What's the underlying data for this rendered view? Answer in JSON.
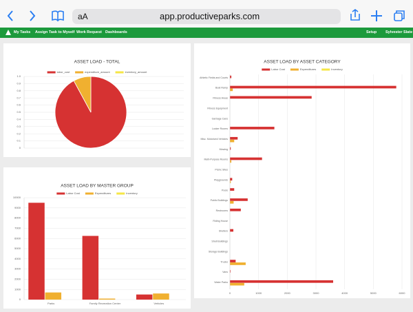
{
  "browser": {
    "text_size": "aA",
    "url": "app.productiveparks.com"
  },
  "nav": {
    "items": [
      "My Tasks",
      "Assign Task to Myself",
      "Work Request",
      "Dashboards"
    ],
    "setup": "Setup",
    "user": "Sylvester Slate"
  },
  "chart_data": [
    {
      "type": "pie",
      "title": "ASSET LOAD - TOTAL",
      "categories": [
        "labor_cost",
        "expenditure_amount",
        "inventory_amount"
      ],
      "values": [
        16300,
        1400,
        0
      ],
      "colors": [
        "#d63232",
        "#f0b030",
        "#f5e646"
      ],
      "ylim": [
        0,
        1
      ],
      "yticks": [
        0,
        0.1,
        0.2,
        0.3,
        0.4,
        0.5,
        0.6,
        0.7,
        0.8,
        0.9,
        {
          "value": 1,
          "label": "1.0"
        }
      ],
      "grid": true,
      "legend": "top"
    },
    {
      "type": "bar",
      "orientation": "vertical",
      "title": "ASSET LOAD BY MASTER GROUP",
      "categories": [
        "Parks",
        "Family Recreation Center",
        "Vehicles"
      ],
      "series": [
        {
          "name": "Labor Cost",
          "color": "#d63232",
          "values": [
            9500,
            6250,
            500
          ]
        },
        {
          "name": "Expenditures",
          "color": "#f0b030",
          "values": [
            700,
            100,
            600
          ]
        },
        {
          "name": "Inventory",
          "color": "#f5e646",
          "values": [
            0,
            0,
            0
          ]
        }
      ],
      "ylim": [
        0,
        10000
      ],
      "yticks": [
        0,
        1000,
        2000,
        3000,
        4000,
        5000,
        6000,
        7000,
        8000,
        9000,
        10000
      ],
      "grid": true,
      "legend": "top"
    },
    {
      "type": "bar",
      "orientation": "horizontal",
      "title": "ASSET LOAD BY ASSET CATEGORY",
      "categories": [
        "Athletic Fields and Courts",
        "Boat Ramp",
        "Fitness Areas",
        "Fitness Equipment",
        "Garbage Cans",
        "Locker Rooms",
        "Misc. Motorized Vehicles",
        "Mowing",
        "Multi-Purpose Rooms",
        "Picnic Sites",
        "Playgrounds",
        "Pools",
        "Public Buildings",
        "Restrooms",
        "Riding House",
        "Shelters",
        "Shell Buildings",
        "Storage Buildings",
        "Trucks",
        "Vans",
        "Water Parks"
      ],
      "series": [
        {
          "name": "Labor Cost",
          "color": "#d63232",
          "values": [
            50,
            5800,
            2850,
            0,
            0,
            1550,
            270,
            30,
            1120,
            0,
            80,
            150,
            620,
            380,
            0,
            120,
            0,
            0,
            200,
            20,
            3600
          ]
        },
        {
          "name": "Expenditures",
          "color": "#f0b030",
          "values": [
            0,
            100,
            0,
            0,
            0,
            0,
            150,
            0,
            50,
            0,
            30,
            0,
            130,
            0,
            0,
            0,
            0,
            0,
            550,
            0,
            500
          ]
        },
        {
          "name": "Inventory",
          "color": "#f5e646",
          "values": [
            0,
            0,
            0,
            0,
            0,
            0,
            0,
            0,
            0,
            0,
            0,
            0,
            0,
            0,
            0,
            0,
            0,
            0,
            0,
            0,
            0
          ]
        }
      ],
      "xlim": [
        0,
        6000
      ],
      "xticks": [
        0,
        1000,
        2000,
        3000,
        4000,
        5000,
        6000
      ],
      "grid": true,
      "legend": "top"
    }
  ]
}
